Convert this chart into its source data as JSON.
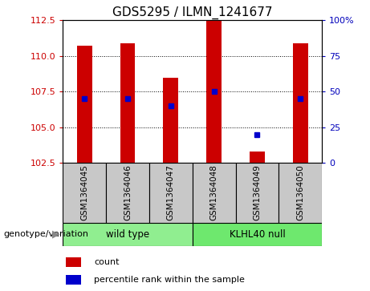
{
  "title": "GDS5295 / ILMN_1241677",
  "samples": [
    "GSM1364045",
    "GSM1364046",
    "GSM1364047",
    "GSM1364048",
    "GSM1364049",
    "GSM1364050"
  ],
  "group_labels": [
    "wild type",
    "KLHL40 null"
  ],
  "count_values": [
    110.7,
    110.9,
    108.5,
    112.5,
    103.3,
    110.9
  ],
  "percentile_right": [
    45,
    45,
    40,
    50,
    20,
    45
  ],
  "ylim_left": [
    102.5,
    112.5
  ],
  "ylim_right": [
    0,
    100
  ],
  "yticks_left": [
    102.5,
    105.0,
    107.5,
    110.0,
    112.5
  ],
  "yticks_right": [
    0,
    25,
    50,
    75,
    100
  ],
  "bar_color": "#CC0000",
  "dot_color": "#0000CC",
  "bar_width": 0.35,
  "label_left_color": "#CC0000",
  "label_right_color": "#0000BB",
  "sample_bg_color": "#C8C8C8",
  "wt_color": "#90EE90",
  "kl_color": "#6EE86E",
  "xlabel_label": "genotype/variation",
  "legend_count": "count",
  "legend_percentile": "percentile rank within the sample",
  "title_fontsize": 11,
  "tick_fontsize": 8,
  "sample_tick_fontsize": 7.5
}
